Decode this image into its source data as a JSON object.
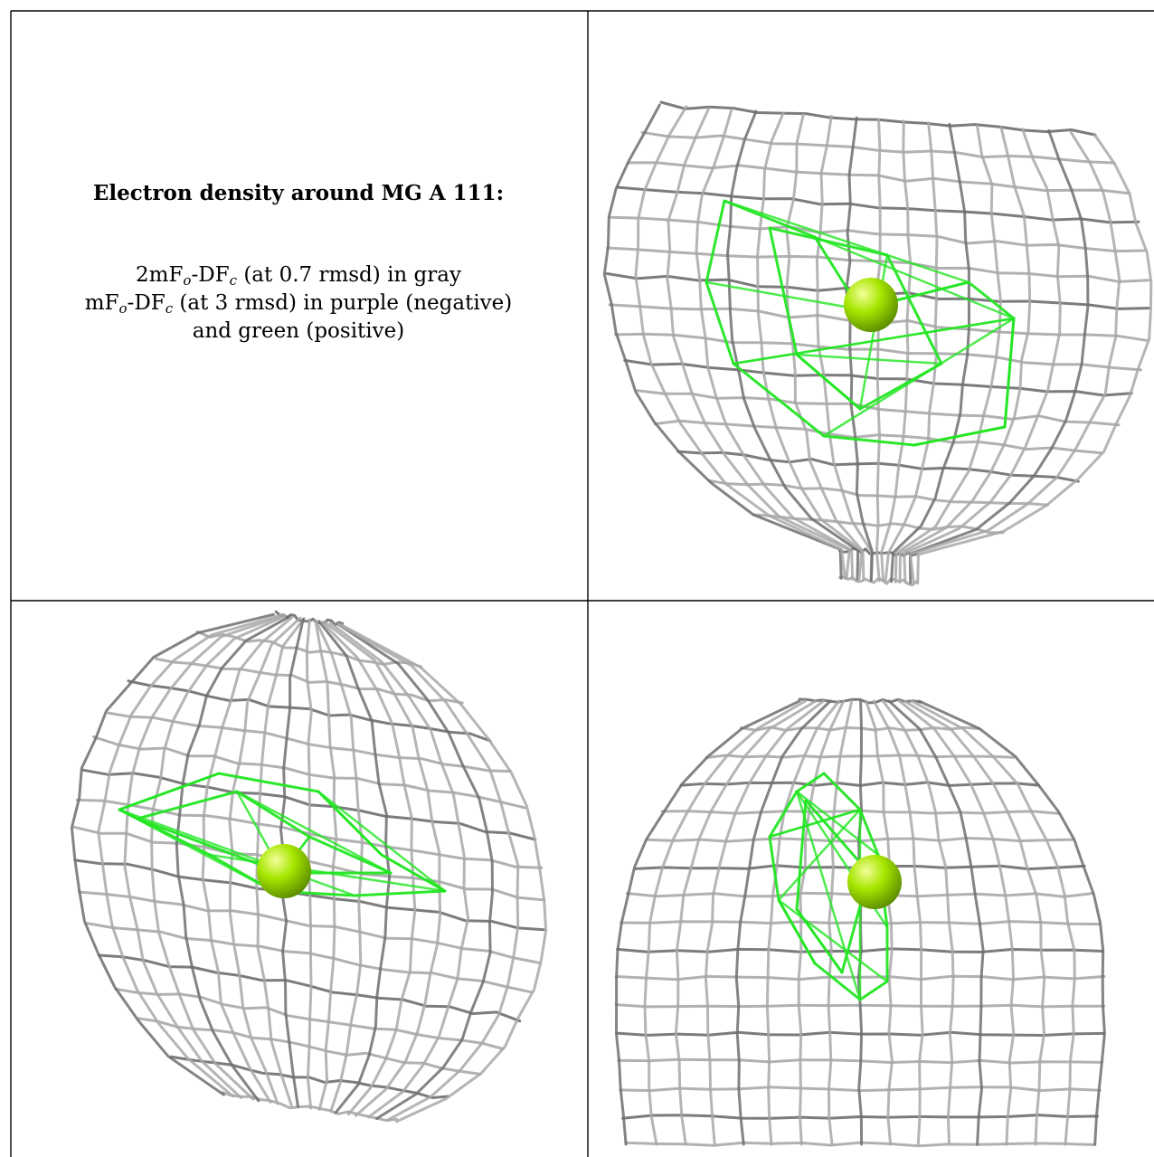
{
  "caption": {
    "title": "Electron density around MG A 111:",
    "line1": {
      "a": "2mF",
      "a_sub": "o",
      "b": "-DF",
      "b_sub": "c",
      "rest": " (at 0.7 rmsd) in gray"
    },
    "line2": {
      "a": "mF",
      "a_sub": "o",
      "b": "-DF",
      "b_sub": "c",
      "rest": " (at 3 rmsd) in purple (negative)"
    },
    "line3": "and green (positive)"
  },
  "colors": {
    "mesh_gray": "#a8a8a8",
    "mesh_dark": "#6e6e6e",
    "mesh_green": "#22e622",
    "ion_yellow_green": "#a6e600",
    "border": "#000000"
  },
  "panels": [
    {
      "id": "view-1",
      "ion": "MG A 111"
    },
    {
      "id": "view-2",
      "ion": "MG A 111"
    },
    {
      "id": "view-3",
      "ion": "MG A 111"
    }
  ]
}
